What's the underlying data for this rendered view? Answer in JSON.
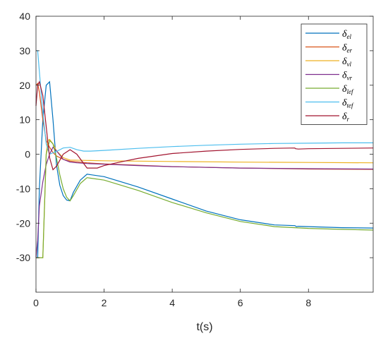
{
  "chart_data": {
    "type": "line",
    "xlabel": "t(s)",
    "ylabel": "",
    "xlim": [
      0,
      9.9
    ],
    "ylim": [
      -40,
      40
    ],
    "xticks": [
      0,
      2,
      4,
      6,
      8
    ],
    "yticks": [
      -30,
      -20,
      -10,
      0,
      10,
      20,
      30,
      40
    ],
    "grid": false,
    "legend_position": "top-right",
    "series": [
      {
        "name": "δ",
        "sub": "el",
        "color": "#0072BD",
        "x": [
          0,
          0.05,
          0.1,
          0.2,
          0.3,
          0.4,
          0.5,
          0.6,
          0.7,
          0.8,
          0.9,
          1.0,
          1.1,
          1.3,
          1.5,
          2.0,
          3.0,
          4.0,
          5.0,
          6.0,
          7.0,
          7.6,
          7.65,
          7.7,
          8.0,
          9.0,
          9.9
        ],
        "y": [
          -30,
          -30,
          -10,
          10,
          20,
          21,
          10,
          -3,
          -9,
          -12,
          -13.3,
          -13.5,
          -11,
          -7.5,
          -5.8,
          -6.5,
          -9.5,
          -13,
          -16.5,
          -19,
          -20.5,
          -20.7,
          -21,
          -20.9,
          -21,
          -21.3,
          -21.4
        ]
      },
      {
        "name": "δ",
        "sub": "er",
        "color": "#D95319",
        "x": [
          0,
          0.05,
          0.1,
          0.2,
          0.3,
          0.4,
          0.5,
          0.6,
          0.8,
          1.0,
          1.2,
          1.5,
          2.0,
          3.0,
          4.0,
          6.0,
          8.0,
          9.9
        ],
        "y": [
          20,
          20.5,
          18,
          10,
          4,
          2,
          0.5,
          -0.5,
          -1.5,
          -2,
          -2.2,
          -2.5,
          -2.8,
          -3.2,
          -3.6,
          -4,
          -4.3,
          -4.4
        ]
      },
      {
        "name": "δ",
        "sub": "vl",
        "color": "#EDB120",
        "x": [
          0,
          0.05,
          0.1,
          0.2,
          0.3,
          0.35,
          0.4,
          0.5,
          0.6,
          0.8,
          1.0,
          1.5,
          2.0,
          3.0,
          4.0,
          6.0,
          8.0,
          9.9
        ],
        "y": [
          -30,
          -30,
          -30,
          -30,
          0,
          4,
          4.3,
          3,
          1,
          -1,
          -1.7,
          -1.8,
          -1.9,
          -2,
          -2.1,
          -2.3,
          -2.4,
          -2.5
        ]
      },
      {
        "name": "δ",
        "sub": "vr",
        "color": "#7E2F8E",
        "x": [
          0,
          0.05,
          0.1,
          0.2,
          0.3,
          0.4,
          0.5,
          0.6,
          0.8,
          1.0,
          1.2,
          1.5,
          2.0,
          3.0,
          4.0,
          6.0,
          8.0,
          9.9
        ],
        "y": [
          -30,
          -25,
          -15,
          -8,
          -3,
          0,
          2,
          1,
          -1.5,
          -2.3,
          -2.5,
          -2.7,
          -2.9,
          -3.3,
          -3.6,
          -4,
          -4.2,
          -4.3
        ]
      },
      {
        "name": "δ",
        "sub": "lef",
        "color": "#77AC30",
        "x": [
          0,
          0.05,
          0.1,
          0.2,
          0.3,
          0.4,
          0.5,
          0.6,
          0.7,
          0.8,
          0.9,
          1.0,
          1.1,
          1.3,
          1.5,
          2.0,
          3.0,
          4.0,
          5.0,
          6.0,
          7.0,
          8.0,
          9.0,
          9.9
        ],
        "y": [
          -30,
          -30,
          -30,
          -30,
          0,
          4,
          3,
          -1,
          -6,
          -10,
          -12.5,
          -13.5,
          -12,
          -8.5,
          -6.8,
          -7.5,
          -10.5,
          -14,
          -17,
          -19.5,
          -21,
          -21.5,
          -21.8,
          -22
        ]
      },
      {
        "name": "δ",
        "sub": "tef",
        "color": "#4DBEEE",
        "x": [
          0,
          0.05,
          0.1,
          0.2,
          0.3,
          0.4,
          0.6,
          0.8,
          1.0,
          1.2,
          1.4,
          1.6,
          2.0,
          3.0,
          4.0,
          5.0,
          6.0,
          7.0,
          8.0,
          9.0,
          9.9
        ],
        "y": [
          30,
          30,
          24,
          12,
          3,
          0,
          0.8,
          1.8,
          2,
          1.3,
          0.9,
          0.9,
          1.1,
          1.7,
          2.2,
          2.6,
          2.9,
          3.1,
          3.2,
          3.3,
          3.3
        ]
      },
      {
        "name": "δ",
        "sub": "r",
        "color": "#A2142F",
        "x": [
          0,
          0.05,
          0.1,
          0.2,
          0.3,
          0.4,
          0.5,
          0.6,
          0.8,
          1.0,
          1.2,
          1.5,
          1.8,
          2.0,
          2.5,
          3.0,
          4.0,
          5.0,
          6.0,
          7.0,
          7.6,
          7.62,
          7.7,
          8.0,
          9.0,
          9.9
        ],
        "y": [
          14,
          20,
          21,
          17,
          8,
          -1,
          -4.5,
          -3.5,
          0,
          1.3,
          0,
          -4,
          -4,
          -3.3,
          -2.2,
          -1.2,
          0.2,
          0.9,
          1.4,
          1.7,
          1.8,
          1.6,
          1.5,
          1.6,
          1.7,
          1.8
        ]
      }
    ]
  }
}
